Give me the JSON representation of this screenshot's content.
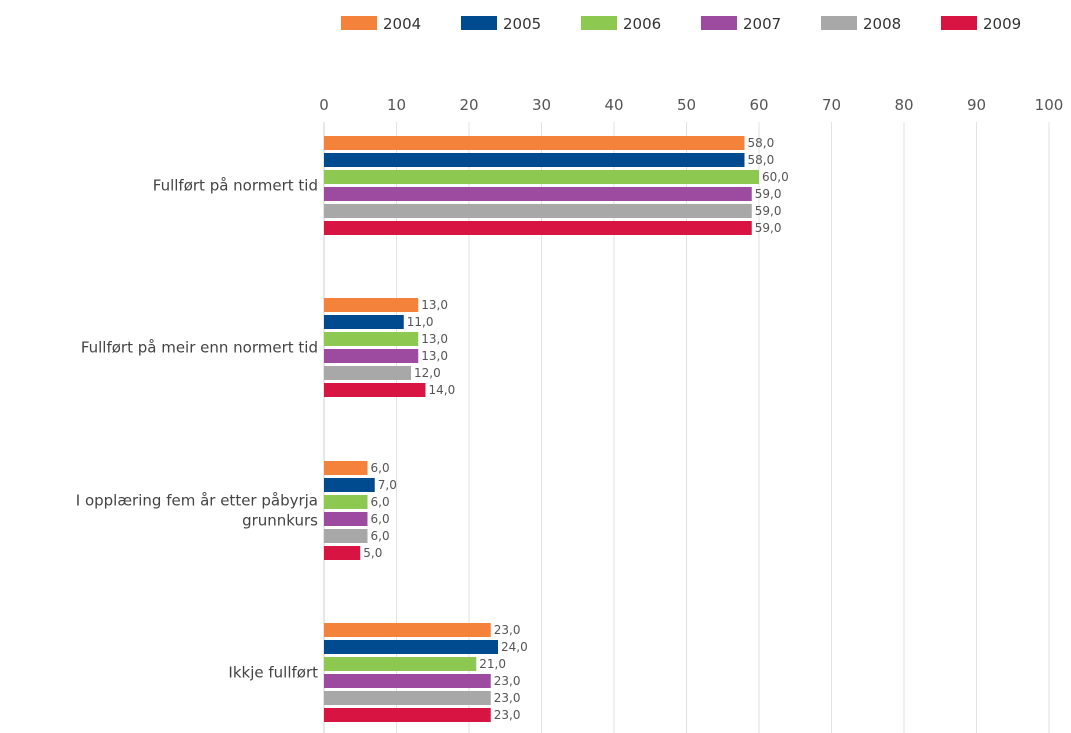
{
  "chart_data": {
    "type": "bar",
    "orientation": "horizontal",
    "title": "",
    "xlabel": "",
    "ylabel": "",
    "xlim": [
      0,
      100
    ],
    "x_ticks": [
      "0",
      "10",
      "20",
      "30",
      "40",
      "50",
      "60",
      "70",
      "80",
      "90",
      "100"
    ],
    "x_axis_position": "top",
    "grid": true,
    "legend_position": "top-right",
    "categories": [
      [
        "Fullført på normert tid"
      ],
      [
        "Fullført på meir enn normert tid"
      ],
      [
        "I opplæring fem år etter påbyrja",
        "grunnkurs"
      ],
      [
        "Ikkje fullført"
      ]
    ],
    "series": [
      {
        "name": "2004",
        "color": "#f5823a",
        "values": [
          58.0,
          13.0,
          6.0,
          23.0
        ],
        "labels": [
          "58,0",
          "13,0",
          "6,0",
          "23,0"
        ]
      },
      {
        "name": "2005",
        "color": "#004a8f",
        "values": [
          58.0,
          11.0,
          7.0,
          24.0
        ],
        "labels": [
          "58,0",
          "11,0",
          "7,0",
          "24,0"
        ]
      },
      {
        "name": "2006",
        "color": "#8dc851",
        "values": [
          60.0,
          13.0,
          6.0,
          21.0
        ],
        "labels": [
          "60,0",
          "13,0",
          "6,0",
          "21,0"
        ]
      },
      {
        "name": "2007",
        "color": "#9c4ba0",
        "values": [
          59.0,
          13.0,
          6.0,
          23.0
        ],
        "labels": [
          "59,0",
          "13,0",
          "6,0",
          "23,0"
        ]
      },
      {
        "name": "2008",
        "color": "#a8a8a8",
        "values": [
          59.0,
          12.0,
          6.0,
          23.0
        ],
        "labels": [
          "59,0",
          "12,0",
          "6,0",
          "23,0"
        ]
      },
      {
        "name": "2009",
        "color": "#d81443",
        "values": [
          59.0,
          14.0,
          5.0,
          23.0
        ],
        "labels": [
          "59,0",
          "14,0",
          "5,0",
          "23,0"
        ]
      }
    ]
  }
}
